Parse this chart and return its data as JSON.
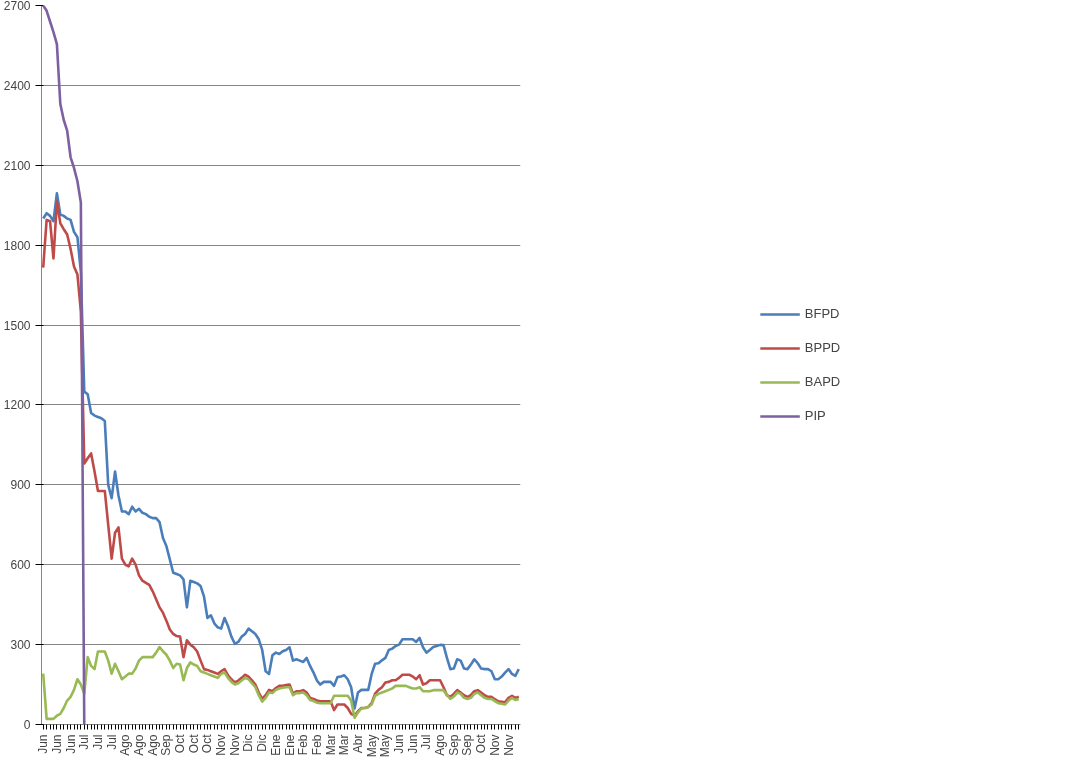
{
  "chart_data": {
    "type": "line",
    "categories": [
      "Jun",
      null,
      null,
      null,
      "Jun",
      null,
      null,
      null,
      "Jun",
      null,
      null,
      null,
      "Jul",
      null,
      null,
      null,
      "Jul",
      null,
      null,
      null,
      "Jul",
      null,
      null,
      null,
      "Ago",
      null,
      null,
      null,
      "Ago",
      null,
      null,
      null,
      "Ago",
      null,
      null,
      null,
      "Sep",
      null,
      null,
      null,
      "Oct",
      null,
      null,
      null,
      "Oct",
      null,
      null,
      null,
      "Oct",
      null,
      null,
      null,
      "Nov",
      null,
      null,
      null,
      "Nov",
      null,
      null,
      null,
      "Dic",
      null,
      null,
      null,
      "Dic",
      null,
      null,
      null,
      "Ene",
      null,
      null,
      null,
      "Ene",
      null,
      null,
      null,
      "Feb",
      null,
      null,
      null,
      "Feb",
      null,
      null,
      null,
      "Mar",
      null,
      null,
      null,
      "Mar",
      null,
      null,
      null,
      "Abr",
      null,
      null,
      null,
      "May",
      null,
      null,
      null,
      "May",
      null,
      null,
      null,
      "Jun",
      null,
      null,
      null,
      "Jun",
      null,
      null,
      null,
      "Jul",
      null,
      null,
      null,
      "Ago",
      null,
      null,
      null,
      "Sep",
      null,
      null,
      null,
      "Sep",
      null,
      null,
      null,
      "Oct",
      null,
      null,
      null,
      "Nov",
      null,
      null,
      null,
      "Nov",
      null,
      null,
      null
    ],
    "series": [
      {
        "name": "BFPD",
        "color": "#4a7ebb",
        "values": [
          1900,
          1920,
          1910,
          1890,
          1995,
          1915,
          1910,
          1900,
          1895,
          1850,
          1830,
          1700,
          1250,
          1240,
          1170,
          1160,
          1155,
          1150,
          1140,
          900,
          850,
          950,
          860,
          800,
          800,
          790,
          818,
          800,
          810,
          795,
          790,
          780,
          775,
          775,
          760,
          700,
          670,
          620,
          570,
          565,
          560,
          545,
          440,
          540,
          535,
          530,
          520,
          480,
          400,
          410,
          380,
          365,
          360,
          400,
          370,
          330,
          303,
          310,
          330,
          340,
          360,
          350,
          340,
          320,
          280,
          200,
          190,
          260,
          270,
          265,
          275,
          280,
          290,
          240,
          245,
          240,
          235,
          250,
          220,
          195,
          165,
          150,
          160,
          160,
          160,
          145,
          178,
          180,
          185,
          170,
          140,
          60,
          120,
          130,
          130,
          130,
          190,
          228,
          230,
          241,
          250,
          280,
          285,
          295,
          300,
          320,
          320,
          320,
          320,
          310,
          325,
          290,
          270,
          280,
          291,
          295,
          299,
          298,
          250,
          208,
          210,
          245,
          240,
          210,
          208,
          225,
          245,
          230,
          210,
          208,
          208,
          200,
          170,
          170,
          180,
          195,
          208,
          190,
          183,
          208
        ]
      },
      {
        "name": "BPPD",
        "color": "#be4b48",
        "values": [
          1716,
          1895,
          1890,
          1750,
          1965,
          1882,
          1860,
          1840,
          1786,
          1720,
          1690,
          1550,
          980,
          1000,
          1018,
          950,
          877,
          877,
          877,
          750,
          623,
          720,
          740,
          623,
          600,
          594,
          623,
          600,
          560,
          540,
          532,
          524,
          500,
          470,
          440,
          420,
          390,
          357,
          340,
          332,
          330,
          253,
          316,
          300,
          290,
          274,
          240,
          208,
          205,
          200,
          195,
          190,
          200,
          208,
          185,
          170,
          158,
          165,
          175,
          187,
          180,
          166,
          150,
          120,
          96,
          110,
          130,
          125,
          137,
          145,
          145,
          148,
          150,
          116,
          125,
          125,
          129,
          120,
          100,
          96,
          90,
          87,
          87,
          87,
          87,
          54,
          75,
          75,
          75,
          62,
          40,
          33,
          50,
          62,
          62,
          66,
          80,
          116,
          130,
          140,
          158,
          160,
          166,
          166,
          175,
          187,
          187,
          187,
          180,
          170,
          185,
          150,
          155,
          166,
          166,
          166,
          166,
          140,
          110,
          104,
          115,
          129,
          120,
          110,
          104,
          110,
          125,
          129,
          120,
          110,
          104,
          104,
          95,
          87,
          85,
          83,
          100,
          108,
          100,
          104
        ]
      },
      {
        "name": "BAPD",
        "color": "#98b954",
        "values": [
          191,
          21,
          21,
          21,
          33,
          40,
          62,
          90,
          104,
          130,
          170,
          150,
          116,
          253,
          220,
          208,
          274,
          274,
          274,
          240,
          191,
          228,
          200,
          170,
          180,
          191,
          191,
          210,
          240,
          253,
          253,
          253,
          253,
          270,
          291,
          275,
          262,
          240,
          212,
          228,
          225,
          166,
          212,
          233,
          225,
          220,
          200,
          195,
          190,
          185,
          180,
          175,
          190,
          195,
          175,
          160,
          150,
          155,
          165,
          175,
          170,
          155,
          140,
          110,
          86,
          100,
          120,
          118,
          130,
          135,
          138,
          140,
          140,
          110,
          118,
          118,
          120,
          110,
          92,
          88,
          82,
          80,
          80,
          80,
          80,
          108,
          108,
          108,
          108,
          108,
          90,
          25,
          45,
          60,
          62,
          66,
          75,
          108,
          115,
          120,
          125,
          130,
          135,
          145,
          145,
          145,
          145,
          140,
          135,
          135,
          140,
          125,
          125,
          125,
          129,
          129,
          129,
          129,
          110,
          96,
          105,
          120,
          115,
          100,
          96,
          100,
          115,
          120,
          110,
          100,
          96,
          96,
          88,
          80,
          78,
          75,
          90,
          100,
          92,
          96
        ]
      },
      {
        "name": "PIP",
        "color": "#7d60a0",
        "values": [
          2700,
          2680,
          2640,
          2600,
          2555,
          2330,
          2270,
          2230,
          2130,
          2090,
          2040,
          1960,
          0,
          null,
          null,
          null,
          null,
          null,
          null,
          null,
          null,
          null,
          null,
          null,
          null,
          null,
          null,
          null,
          null,
          null,
          null,
          null,
          null,
          null,
          null,
          null,
          null,
          null,
          null,
          null,
          null,
          null,
          null,
          null,
          null,
          null,
          null,
          null,
          null,
          null,
          null,
          null,
          null,
          null,
          null,
          null,
          null,
          null,
          null,
          null,
          null,
          null,
          null,
          null,
          null,
          null,
          null,
          null,
          null,
          null,
          null,
          null,
          null,
          null,
          null,
          null,
          null,
          null,
          null,
          null,
          null,
          null,
          null,
          null,
          null,
          null,
          null,
          null,
          null,
          null,
          null,
          null,
          null,
          null,
          null,
          null,
          null,
          null,
          null,
          null,
          null,
          null,
          null,
          null,
          null,
          null,
          null,
          null,
          null,
          null,
          null,
          null,
          null,
          null,
          null,
          null,
          null,
          null,
          null,
          null,
          null,
          null,
          null,
          null,
          null,
          null,
          null,
          null,
          null,
          null,
          null,
          null,
          null,
          null,
          null,
          null,
          null,
          null,
          null,
          null
        ]
      }
    ],
    "ylim": [
      0,
      2700
    ],
    "yticks": [
      0,
      300,
      600,
      900,
      1200,
      1500,
      1800,
      2100,
      2400,
      2700
    ],
    "grid": "y",
    "legend": "right",
    "line_style": "solid",
    "marker": "none"
  }
}
